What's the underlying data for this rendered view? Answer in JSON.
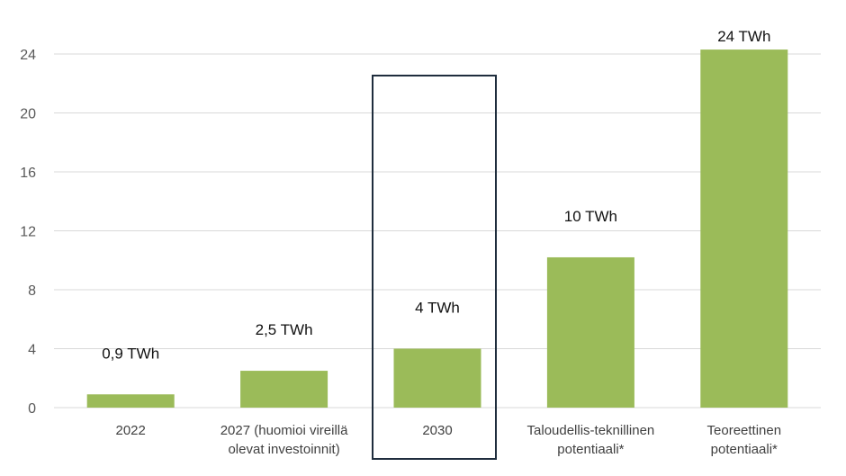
{
  "chart_data": {
    "type": "bar",
    "title": "",
    "xlabel": "",
    "ylabel": "",
    "categories": [
      [
        "2022"
      ],
      [
        "2027 (huomioi vireillä",
        "olevat investoinnit)"
      ],
      [
        "2030"
      ],
      [
        "Taloudellis-teknillinen",
        "potentiaali*"
      ],
      [
        "Teoreettinen",
        "potentiaali*"
      ]
    ],
    "values": [
      0.9,
      2.5,
      4,
      10.2,
      24.3
    ],
    "data_labels": [
      "0,9 TWh",
      "2,5 TWh",
      "4 TWh",
      "10 TWh",
      "24 TWh"
    ],
    "ylim": [
      0,
      24
    ],
    "yticks": [
      0,
      4,
      8,
      12,
      16,
      20,
      24
    ],
    "grid": true,
    "highlighted_category_index": 2,
    "colors": {
      "bar": "#9BBB59",
      "grid": "#D9D9D9",
      "axis": "#D9D9D9",
      "highlight_box": "#1F2D3D"
    }
  }
}
